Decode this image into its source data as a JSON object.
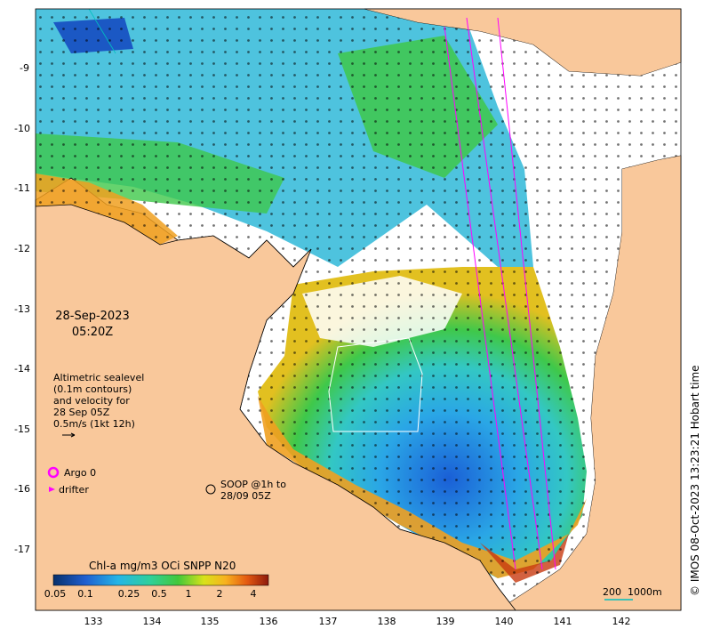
{
  "datetime": {
    "date": "28-Sep-2023",
    "time": "05:20Z"
  },
  "altimetry_note": [
    "Altimetric sealevel",
    "(0.1m contours)",
    "and velocity for",
    "28 Sep 05Z",
    "0.5m/s (1kt 12h)"
  ],
  "legend": {
    "argo": "Argo 0",
    "drifter": "drifter",
    "soop": [
      "SOOP @1h to",
      "28/09 05Z"
    ]
  },
  "colorbar": {
    "title": "Chl-a mg/m3 OCi SNPP N20",
    "ticks": [
      "0.05",
      "0.1",
      "0.25",
      "0.5",
      "1",
      "2",
      "4"
    ]
  },
  "scale_bar": {
    "label_a": "200",
    "label_b": "1000m"
  },
  "credit": "© IMOS 08-Oct-2023 13:23:21 Hobart time",
  "axes": {
    "lat_labels": [
      "-9",
      "-10",
      "-11",
      "-12",
      "-13",
      "-14",
      "-15",
      "-16",
      "-17"
    ],
    "lon_labels": [
      "133",
      "134",
      "135",
      "136",
      "137",
      "138",
      "139",
      "140",
      "141",
      "142"
    ]
  },
  "colors": {
    "land": "#f9c89b",
    "ocean_low": "#1f6fd1",
    "ocean_mid": "#3fbbe0",
    "ocean_high": "#2ecc40",
    "coastal": "#f0a020",
    "argo": "#ff00ff"
  }
}
